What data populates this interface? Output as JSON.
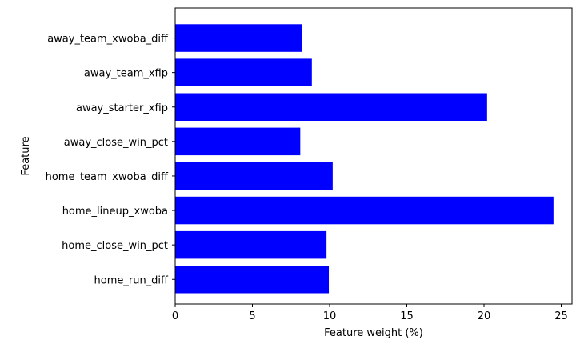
{
  "chart_data": {
    "type": "bar",
    "orientation": "horizontal",
    "categories": [
      "home_run_diff",
      "home_close_win_pct",
      "home_lineup_xwoba",
      "home_team_xwoba_diff",
      "away_close_win_pct",
      "away_starter_xfip",
      "away_team_xfip",
      "away_team_xwoba_diff"
    ],
    "values": [
      9.95,
      9.8,
      24.5,
      10.2,
      8.1,
      20.2,
      8.85,
      8.2
    ],
    "xlabel": "Feature weight (%)",
    "ylabel": "Feature",
    "xlim": [
      0,
      25.7
    ],
    "xticks": [
      "0",
      "5",
      "10",
      "15",
      "20",
      "25"
    ],
    "bar_color": "#0000ff",
    "grid": false,
    "legend": false
  }
}
